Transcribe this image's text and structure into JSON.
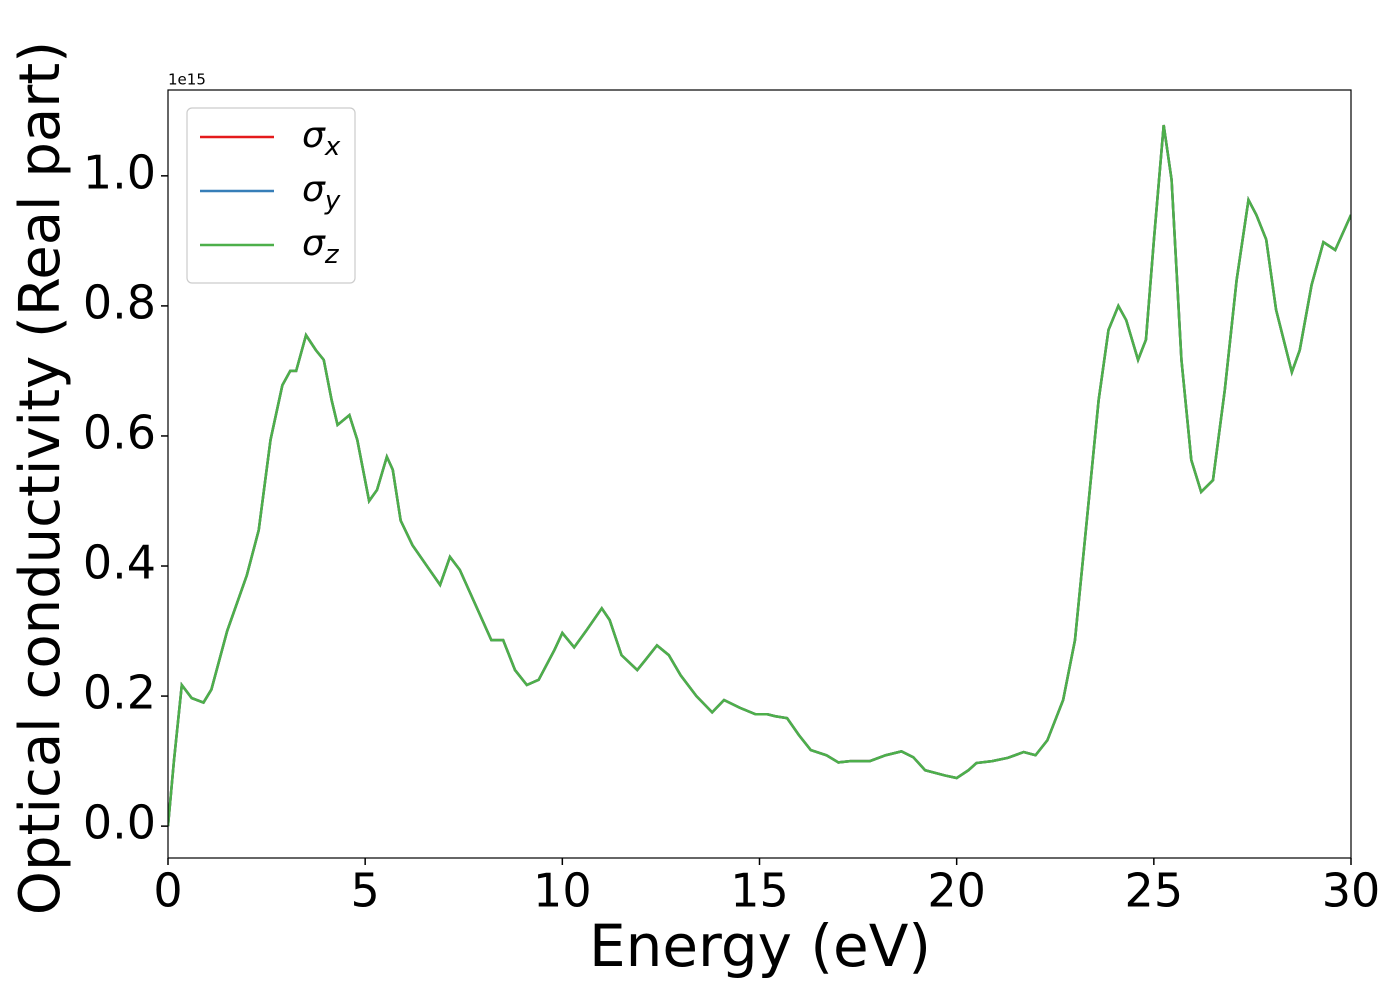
{
  "chart_data": {
    "type": "line",
    "xlabel": "Energy (eV)",
    "ylabel": "Optical conductivity (Real part)",
    "y_offset_label": "1e15",
    "x": [
      0,
      0.15,
      0.35,
      0.6,
      0.9,
      1.1,
      1.5,
      2.0,
      2.3,
      2.6,
      2.9,
      3.1,
      3.25,
      3.5,
      3.75,
      3.95,
      4.15,
      4.3,
      4.6,
      4.8,
      5.1,
      5.3,
      5.55,
      5.7,
      5.9,
      6.2,
      6.6,
      6.9,
      7.15,
      7.4,
      7.8,
      8.2,
      8.5,
      8.8,
      9.1,
      9.4,
      9.8,
      10.0,
      10.3,
      10.6,
      11.0,
      11.2,
      11.5,
      11.9,
      12.1,
      12.4,
      12.7,
      13.0,
      13.4,
      13.8,
      14.1,
      14.5,
      14.9,
      15.2,
      15.4,
      15.7,
      16.0,
      16.3,
      16.7,
      17.0,
      17.3,
      17.8,
      18.2,
      18.6,
      18.9,
      19.2,
      19.7,
      20.0,
      20.3,
      20.5,
      20.9,
      21.3,
      21.7,
      22.0,
      22.3,
      22.7,
      23.0,
      23.3,
      23.6,
      23.85,
      24.1,
      24.3,
      24.6,
      24.8,
      25.0,
      25.25,
      25.45,
      25.7,
      25.95,
      26.2,
      26.5,
      26.8,
      27.1,
      27.4,
      27.6,
      27.85,
      28.1,
      28.5,
      28.7,
      29.0,
      29.3,
      29.6,
      30.0
    ],
    "series": [
      {
        "name": "σx",
        "color": "#e41a1c",
        "values": [
          0.0,
          0.1,
          0.217,
          0.197,
          0.19,
          0.21,
          0.3,
          0.386,
          0.455,
          0.594,
          0.678,
          0.7,
          0.7,
          0.755,
          0.732,
          0.717,
          0.655,
          0.617,
          0.632,
          0.594,
          0.5,
          0.517,
          0.568,
          0.548,
          0.47,
          0.432,
          0.397,
          0.371,
          0.414,
          0.394,
          0.34,
          0.286,
          0.286,
          0.24,
          0.217,
          0.225,
          0.271,
          0.297,
          0.275,
          0.3,
          0.335,
          0.317,
          0.263,
          0.24,
          0.255,
          0.278,
          0.263,
          0.232,
          0.2,
          0.175,
          0.194,
          0.182,
          0.172,
          0.172,
          0.169,
          0.166,
          0.14,
          0.117,
          0.109,
          0.098,
          0.1,
          0.1,
          0.109,
          0.115,
          0.106,
          0.086,
          0.078,
          0.074,
          0.086,
          0.097,
          0.1,
          0.105,
          0.114,
          0.109,
          0.132,
          0.194,
          0.286,
          0.47,
          0.655,
          0.763,
          0.8,
          0.778,
          0.717,
          0.748,
          0.9,
          1.078,
          0.994,
          0.717,
          0.563,
          0.514,
          0.532,
          0.671,
          0.84,
          0.963,
          0.94,
          0.902,
          0.794,
          0.698,
          0.732,
          0.832,
          0.898,
          0.886,
          0.94
        ]
      },
      {
        "name": "σy",
        "color": "#377eb8",
        "values": [
          0.0,
          0.1,
          0.217,
          0.197,
          0.19,
          0.21,
          0.3,
          0.386,
          0.455,
          0.594,
          0.678,
          0.7,
          0.7,
          0.755,
          0.732,
          0.717,
          0.655,
          0.617,
          0.632,
          0.594,
          0.5,
          0.517,
          0.568,
          0.548,
          0.47,
          0.432,
          0.397,
          0.371,
          0.414,
          0.394,
          0.34,
          0.286,
          0.286,
          0.24,
          0.217,
          0.225,
          0.271,
          0.297,
          0.275,
          0.3,
          0.335,
          0.317,
          0.263,
          0.24,
          0.255,
          0.278,
          0.263,
          0.232,
          0.2,
          0.175,
          0.194,
          0.182,
          0.172,
          0.172,
          0.169,
          0.166,
          0.14,
          0.117,
          0.109,
          0.098,
          0.1,
          0.1,
          0.109,
          0.115,
          0.106,
          0.086,
          0.078,
          0.074,
          0.086,
          0.097,
          0.1,
          0.105,
          0.114,
          0.109,
          0.132,
          0.194,
          0.286,
          0.47,
          0.655,
          0.763,
          0.8,
          0.778,
          0.717,
          0.748,
          0.9,
          1.078,
          0.994,
          0.717,
          0.563,
          0.514,
          0.532,
          0.671,
          0.84,
          0.963,
          0.94,
          0.902,
          0.794,
          0.698,
          0.732,
          0.832,
          0.898,
          0.886,
          0.94
        ]
      },
      {
        "name": "σz",
        "color": "#4daf4a",
        "values": [
          0.0,
          0.1,
          0.217,
          0.197,
          0.19,
          0.21,
          0.3,
          0.386,
          0.455,
          0.594,
          0.678,
          0.7,
          0.7,
          0.755,
          0.732,
          0.717,
          0.655,
          0.617,
          0.632,
          0.594,
          0.5,
          0.517,
          0.568,
          0.548,
          0.47,
          0.432,
          0.397,
          0.371,
          0.414,
          0.394,
          0.34,
          0.286,
          0.286,
          0.24,
          0.217,
          0.225,
          0.271,
          0.297,
          0.275,
          0.3,
          0.335,
          0.317,
          0.263,
          0.24,
          0.255,
          0.278,
          0.263,
          0.232,
          0.2,
          0.175,
          0.194,
          0.182,
          0.172,
          0.172,
          0.169,
          0.166,
          0.14,
          0.117,
          0.109,
          0.098,
          0.1,
          0.1,
          0.109,
          0.115,
          0.106,
          0.086,
          0.078,
          0.074,
          0.086,
          0.097,
          0.1,
          0.105,
          0.114,
          0.109,
          0.132,
          0.194,
          0.286,
          0.47,
          0.655,
          0.763,
          0.8,
          0.778,
          0.717,
          0.748,
          0.9,
          1.078,
          0.994,
          0.717,
          0.563,
          0.514,
          0.532,
          0.671,
          0.84,
          0.963,
          0.94,
          0.902,
          0.794,
          0.698,
          0.732,
          0.832,
          0.898,
          0.886,
          0.94
        ]
      }
    ],
    "xlim": [
      0,
      30
    ],
    "xticks": [
      0,
      5,
      10,
      15,
      20,
      25,
      30
    ],
    "ylim": [
      -0.049,
      1.132
    ],
    "yticks": [
      {
        "value": 0,
        "label": "0.0"
      },
      0.2,
      0.4,
      0.6,
      0.8,
      {
        "value": 1,
        "label": "1.0"
      }
    ],
    "legend": "upper left",
    "grid": false
  }
}
